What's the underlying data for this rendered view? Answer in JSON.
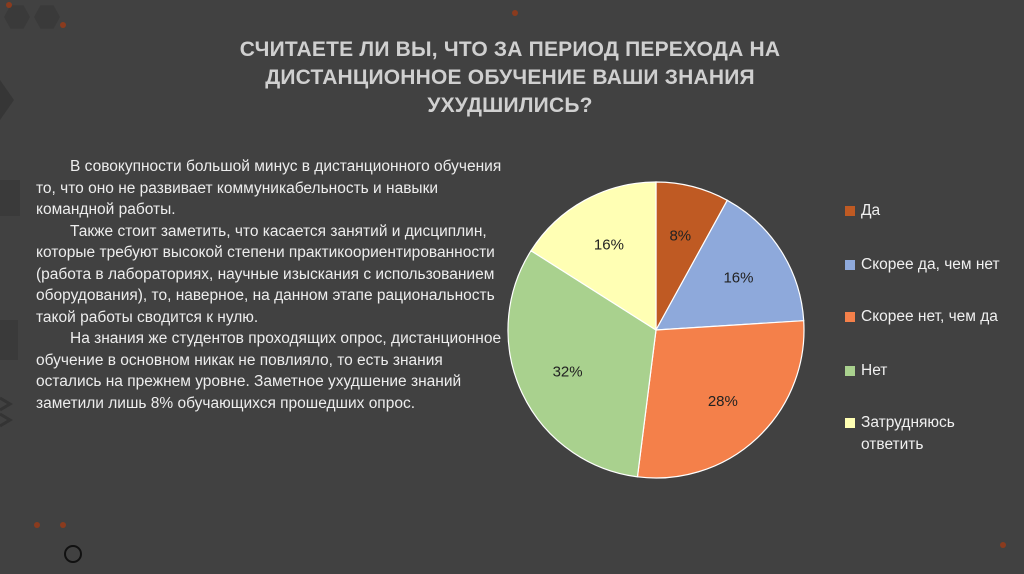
{
  "slide": {
    "title": "СЧИТАЕТЕ ЛИ ВЫ, ЧТО ЗА ПЕРИОД ПЕРЕХОДА НА ДИСТАНЦИОННОЕ ОБУЧЕНИЕ ВАШИ ЗНАНИЯ УХУДШИЛИСЬ?",
    "paragraphs": [
      "В совокупности большой минус в дистанционного обучения то, что оно не развивает коммуникабельность и навыки командной работы.",
      "Также стоит заметить, что касается занятий и дисциплин, которые требуют высокой степени практикоориентированности (работа в лабораториях, научные изыскания с использованием оборудования), то, наверное, на данном этапе рациональность такой работы сводится к нулю.",
      "На знания же студентов проходящих опрос, дистанционное обучение в основном никак не повлияло, то есть знания остались на прежнем уровне. Заметное ухудшение знаний заметили лишь 8% обучающихся прошедших опрос."
    ]
  },
  "chart_data": {
    "type": "pie",
    "title": "",
    "legend_position": "right",
    "slices": [
      {
        "label": "Да",
        "value": 8,
        "data_label": "8%",
        "color": "#bf5a23"
      },
      {
        "label": "Скорее да, чем нет",
        "value": 16,
        "data_label": "16%",
        "color": "#8ea9db"
      },
      {
        "label": "Скорее нет, чем да",
        "value": 28,
        "data_label": "28%",
        "color": "#f4804a"
      },
      {
        "label": "Нет",
        "value": 32,
        "data_label": "32%",
        "color": "#a9d18e"
      },
      {
        "label": "Затрудняюсь ответить",
        "value": 16,
        "data_label": "16%",
        "color": "#ffffb4"
      }
    ]
  }
}
